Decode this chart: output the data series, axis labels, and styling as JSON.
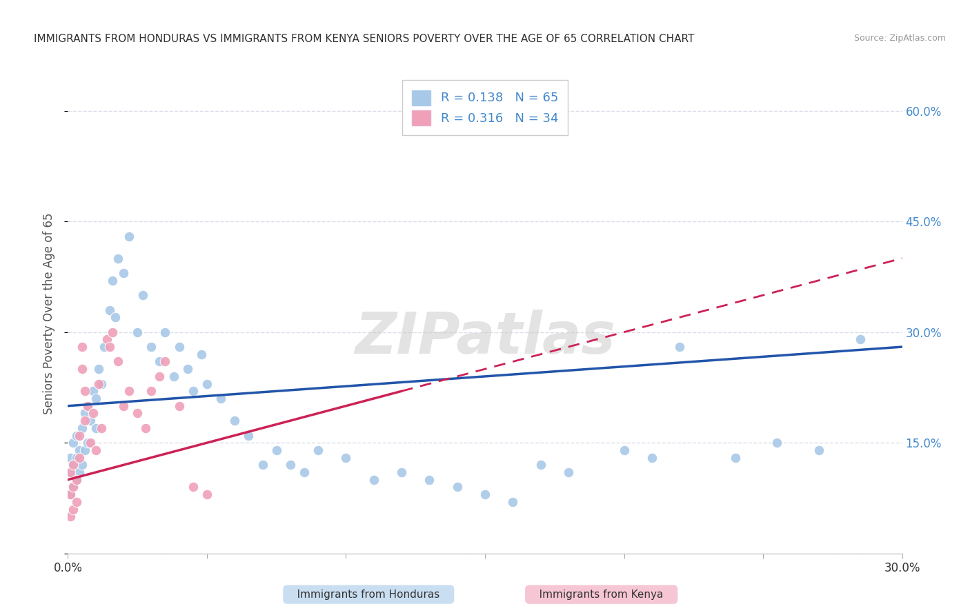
{
  "title": "IMMIGRANTS FROM HONDURAS VS IMMIGRANTS FROM KENYA SENIORS POVERTY OVER THE AGE OF 65 CORRELATION CHART",
  "source": "Source: ZipAtlas.com",
  "ylabel": "Seniors Poverty Over the Age of 65",
  "xlim": [
    0.0,
    0.3
  ],
  "ylim": [
    0.0,
    0.65
  ],
  "x_tick_positions": [
    0.0,
    0.05,
    0.1,
    0.15,
    0.2,
    0.25,
    0.3
  ],
  "x_tick_labels": [
    "0.0%",
    "",
    "",
    "",
    "",
    "",
    "30.0%"
  ],
  "y_tick_positions": [
    0.0,
    0.15,
    0.3,
    0.45,
    0.6
  ],
  "y_tick_labels_right": [
    "",
    "15.0%",
    "30.0%",
    "45.0%",
    "60.0%"
  ],
  "R_honduras": 0.138,
  "N_honduras": 65,
  "R_kenya": 0.316,
  "N_kenya": 34,
  "color_honduras": "#a8c8e8",
  "color_kenya": "#f0a0b8",
  "color_honduras_line": "#2255aa",
  "color_kenya_line": "#cc2255",
  "background_color": "#ffffff",
  "grid_color": "#d8dde8",
  "watermark": "ZIPatlas",
  "honduras_x": [
    0.001,
    0.001,
    0.001,
    0.002,
    0.002,
    0.002,
    0.003,
    0.003,
    0.003,
    0.004,
    0.004,
    0.005,
    0.005,
    0.006,
    0.006,
    0.007,
    0.007,
    0.008,
    0.009,
    0.01,
    0.01,
    0.011,
    0.012,
    0.013,
    0.015,
    0.016,
    0.017,
    0.018,
    0.02,
    0.022,
    0.025,
    0.027,
    0.03,
    0.033,
    0.035,
    0.038,
    0.04,
    0.043,
    0.045,
    0.048,
    0.05,
    0.055,
    0.06,
    0.065,
    0.07,
    0.075,
    0.08,
    0.085,
    0.09,
    0.1,
    0.11,
    0.12,
    0.13,
    0.14,
    0.15,
    0.16,
    0.17,
    0.18,
    0.2,
    0.21,
    0.22,
    0.24,
    0.255,
    0.27,
    0.285
  ],
  "honduras_y": [
    0.08,
    0.11,
    0.13,
    0.09,
    0.12,
    0.15,
    0.1,
    0.13,
    0.16,
    0.11,
    0.14,
    0.12,
    0.17,
    0.14,
    0.19,
    0.15,
    0.2,
    0.18,
    0.22,
    0.17,
    0.21,
    0.25,
    0.23,
    0.28,
    0.33,
    0.37,
    0.32,
    0.4,
    0.38,
    0.43,
    0.3,
    0.35,
    0.28,
    0.26,
    0.3,
    0.24,
    0.28,
    0.25,
    0.22,
    0.27,
    0.23,
    0.21,
    0.18,
    0.16,
    0.12,
    0.14,
    0.12,
    0.11,
    0.14,
    0.13,
    0.1,
    0.11,
    0.1,
    0.09,
    0.08,
    0.07,
    0.12,
    0.11,
    0.14,
    0.13,
    0.28,
    0.13,
    0.15,
    0.14,
    0.29
  ],
  "kenya_x": [
    0.001,
    0.001,
    0.001,
    0.002,
    0.002,
    0.002,
    0.003,
    0.003,
    0.004,
    0.004,
    0.005,
    0.005,
    0.006,
    0.006,
    0.007,
    0.008,
    0.009,
    0.01,
    0.011,
    0.012,
    0.014,
    0.015,
    0.016,
    0.018,
    0.02,
    0.022,
    0.025,
    0.028,
    0.03,
    0.033,
    0.035,
    0.04,
    0.045,
    0.05
  ],
  "kenya_y": [
    0.05,
    0.08,
    0.11,
    0.06,
    0.09,
    0.12,
    0.07,
    0.1,
    0.13,
    0.16,
    0.28,
    0.25,
    0.22,
    0.18,
    0.2,
    0.15,
    0.19,
    0.14,
    0.23,
    0.17,
    0.29,
    0.28,
    0.3,
    0.26,
    0.2,
    0.22,
    0.19,
    0.17,
    0.22,
    0.24,
    0.26,
    0.2,
    0.09,
    0.08
  ]
}
